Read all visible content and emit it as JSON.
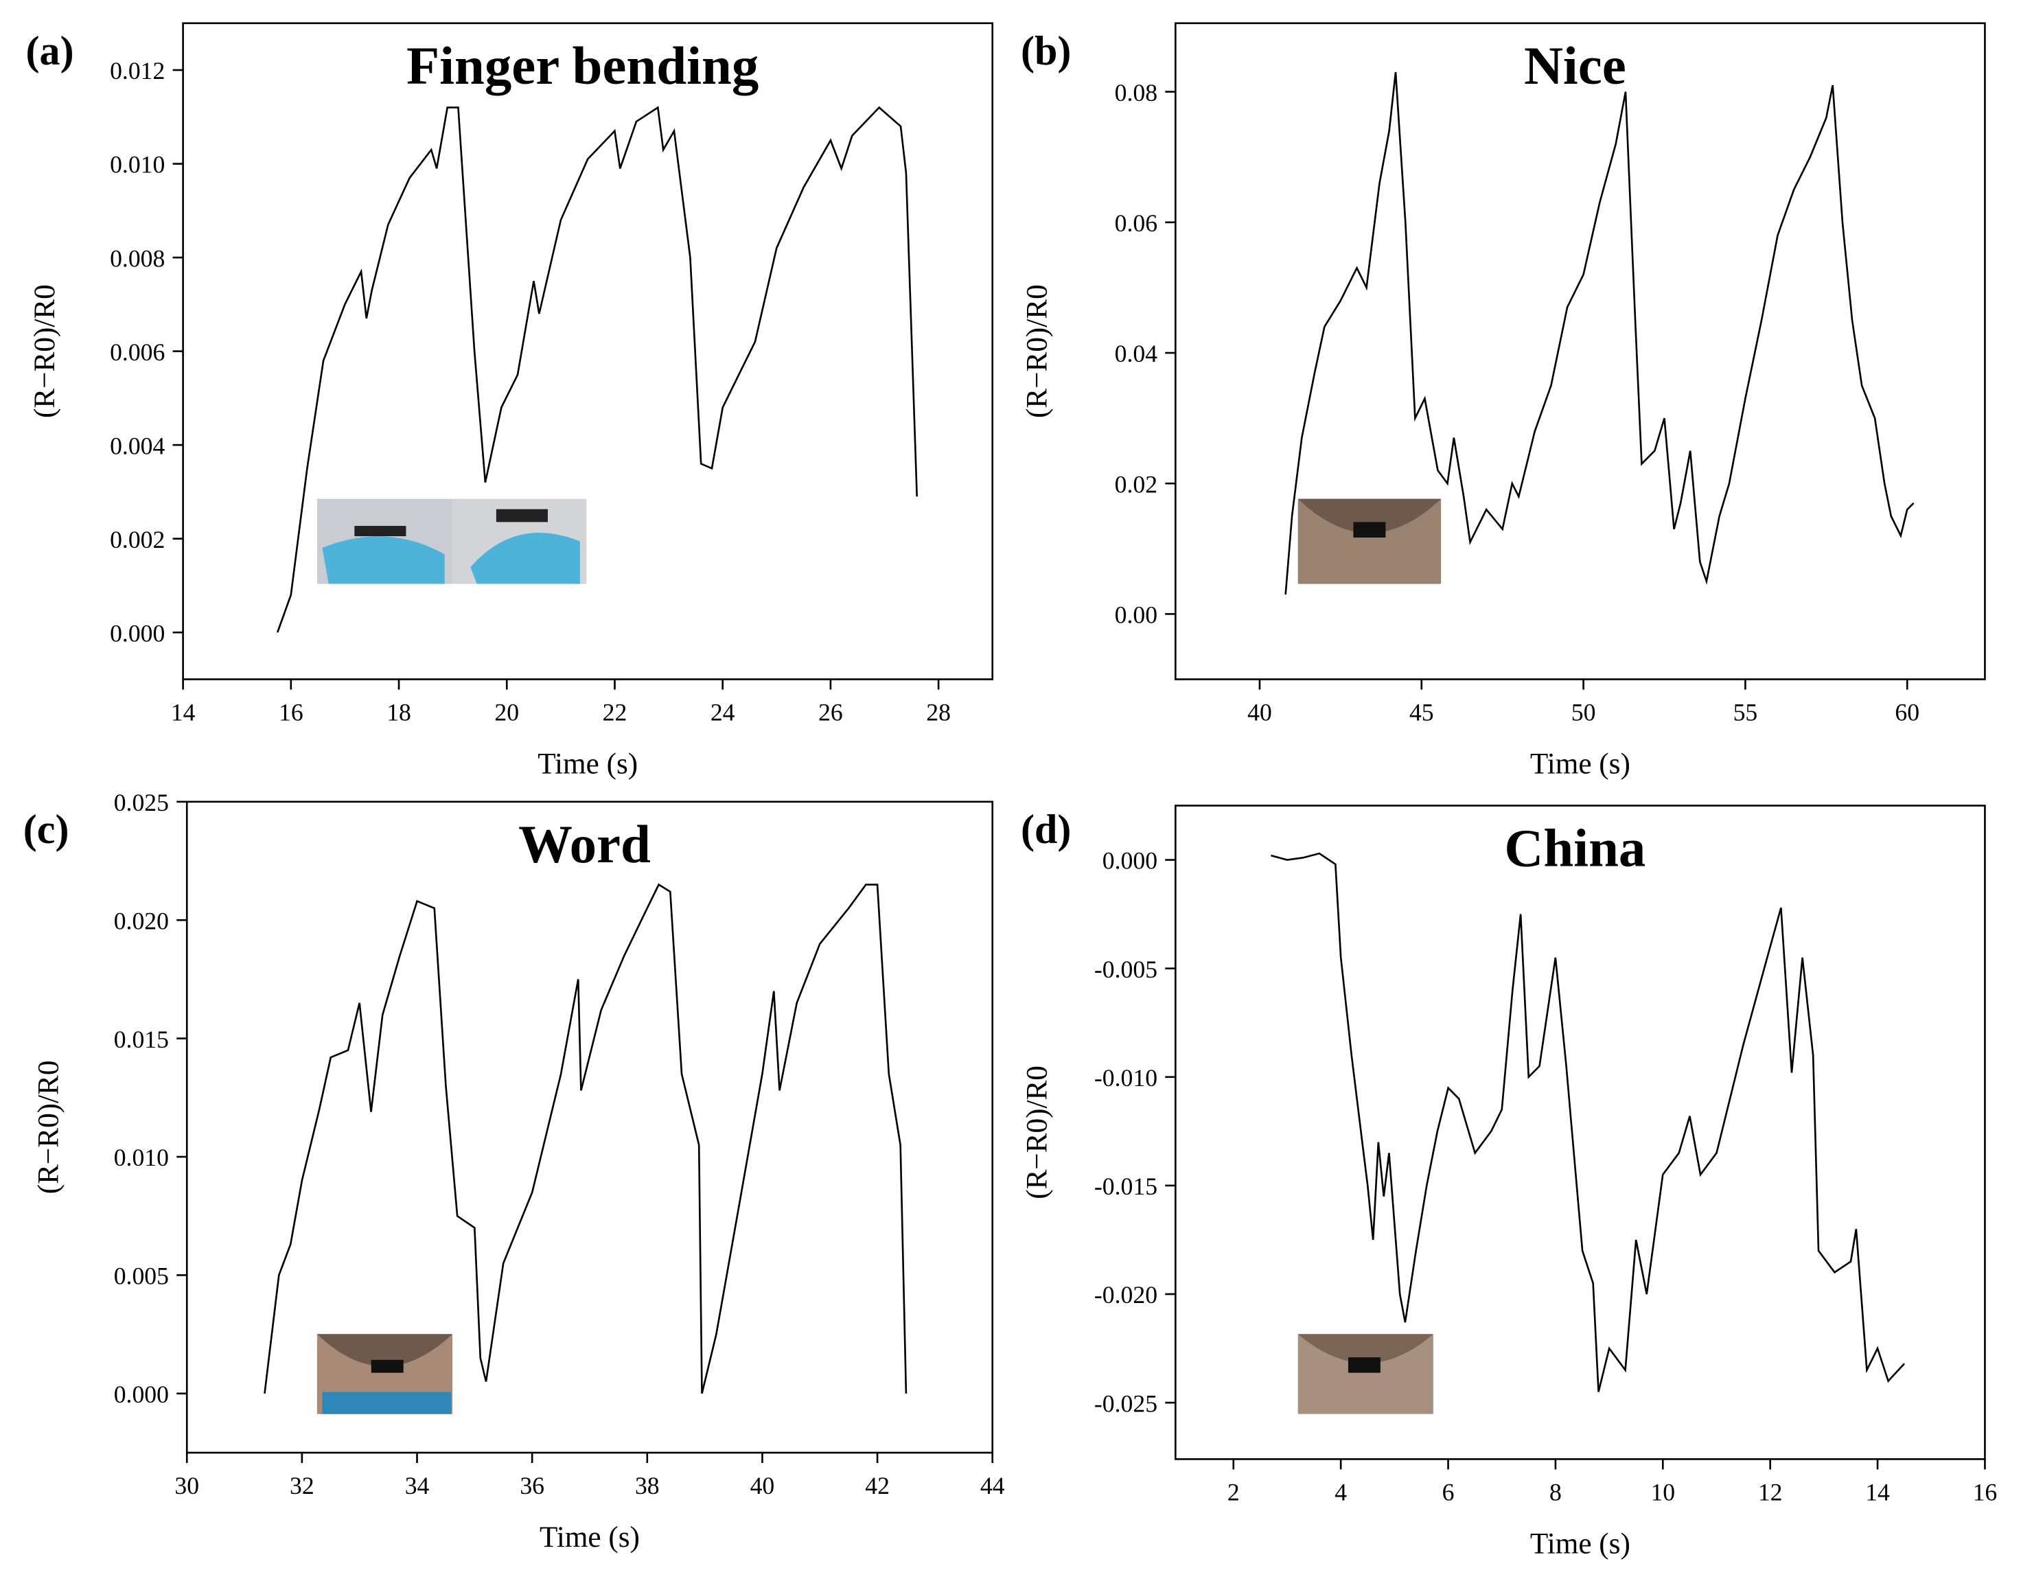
{
  "chart_data": [
    {
      "type": "line",
      "panel_label": "(a)",
      "title": "Finger bending",
      "xlabel": "Time (s)",
      "ylabel": "(R−R0)/R0",
      "color": "#000000",
      "xlim": [
        14,
        29
      ],
      "ylim": [
        -0.001,
        0.013
      ],
      "xticks": [
        14,
        16,
        18,
        20,
        22,
        24,
        26,
        28
      ],
      "yticks": [
        {
          "value": 0,
          "label": "0.000"
        },
        0.002,
        0.004,
        0.006,
        0.008,
        {
          "value": 0.01,
          "label": "0.010"
        },
        0.012
      ],
      "x": [
        15.75,
        16.0,
        16.3,
        16.6,
        17.0,
        17.3,
        17.4,
        17.5,
        17.8,
        18.2,
        18.6,
        18.7,
        18.9,
        19.1,
        19.4,
        19.6,
        19.9,
        20.2,
        20.5,
        20.6,
        21.0,
        21.5,
        22.0,
        22.1,
        22.4,
        22.8,
        22.9,
        23.1,
        23.4,
        23.6,
        23.8,
        24.0,
        24.3,
        24.6,
        25.0,
        25.5,
        26.0,
        26.2,
        26.4,
        26.9,
        27.3,
        27.4,
        27.6
      ],
      "values": [
        0,
        0.0008,
        0.0035,
        0.0058,
        0.007,
        0.0077,
        0.0067,
        0.0073,
        0.0087,
        0.0097,
        0.0103,
        0.0099,
        0.0112,
        0.0112,
        0.006,
        0.0032,
        0.0048,
        0.0055,
        0.0075,
        0.0068,
        0.0088,
        0.0101,
        0.0107,
        0.0099,
        0.0109,
        0.0112,
        0.0103,
        0.0107,
        0.008,
        0.0036,
        0.0035,
        0.0048,
        0.0055,
        0.0062,
        0.0082,
        0.0095,
        0.0105,
        0.0099,
        0.0106,
        0.0112,
        0.0108,
        0.0098,
        0.0029
      ]
    },
    {
      "type": "line",
      "panel_label": "(b)",
      "title": "Nice",
      "xlabel": "Time (s)",
      "ylabel": "(R−R0)/R0",
      "color": "#000000",
      "xlim": [
        37.4,
        62.4
      ],
      "ylim": [
        -0.01,
        0.0905
      ],
      "xticks": [
        40,
        45,
        50,
        55,
        60
      ],
      "yticks": [
        {
          "value": 0,
          "label": "0.00"
        },
        0.02,
        0.04,
        0.06,
        0.08
      ],
      "x": [
        40.8,
        41.0,
        41.3,
        41.7,
        42.0,
        42.5,
        43.0,
        43.3,
        43.7,
        44.0,
        44.2,
        44.5,
        44.8,
        45.1,
        45.5,
        45.8,
        46.0,
        46.3,
        46.5,
        47.0,
        47.5,
        47.8,
        48.0,
        48.5,
        49.0,
        49.5,
        50.0,
        50.5,
        51.0,
        51.3,
        51.6,
        51.8,
        52.2,
        52.5,
        52.8,
        53.0,
        53.3,
        53.6,
        53.8,
        54.2,
        54.5,
        55.0,
        55.5,
        56.0,
        56.5,
        57.0,
        57.5,
        57.7,
        58.0,
        58.3,
        58.6,
        59.0,
        59.3,
        59.5,
        59.8,
        60.0,
        60.2
      ],
      "values": [
        0.003,
        0.015,
        0.027,
        0.037,
        0.044,
        0.048,
        0.053,
        0.05,
        0.066,
        0.074,
        0.083,
        0.06,
        0.03,
        0.033,
        0.022,
        0.02,
        0.027,
        0.018,
        0.011,
        0.016,
        0.013,
        0.02,
        0.018,
        0.028,
        0.035,
        0.047,
        0.052,
        0.063,
        0.072,
        0.08,
        0.045,
        0.023,
        0.025,
        0.03,
        0.013,
        0.017,
        0.025,
        0.008,
        0.005,
        0.015,
        0.02,
        0.033,
        0.045,
        0.058,
        0.065,
        0.07,
        0.076,
        0.081,
        0.06,
        0.045,
        0.035,
        0.03,
        0.02,
        0.015,
        0.012,
        0.016,
        0.017
      ]
    },
    {
      "type": "line",
      "panel_label": "(c)",
      "title": "Word",
      "xlabel": "Time (s)",
      "ylabel": "(R−R0)/R0",
      "color": "#000000",
      "xlim": [
        30,
        44
      ],
      "ylim": [
        -0.0025,
        0.025
      ],
      "xticks": [
        30,
        32,
        34,
        36,
        38,
        40,
        42,
        44
      ],
      "yticks": [
        {
          "value": 0,
          "label": "0.000"
        },
        0.005,
        {
          "value": 0.01,
          "label": "0.010"
        },
        0.015,
        {
          "value": 0.02,
          "label": "0.020"
        },
        0.025
      ],
      "x": [
        31.35,
        31.6,
        31.8,
        32.0,
        32.3,
        32.5,
        32.8,
        33.0,
        33.2,
        33.4,
        33.7,
        34.0,
        34.3,
        34.5,
        34.7,
        35.0,
        35.1,
        35.2,
        35.5,
        36.0,
        36.5,
        36.8,
        36.85,
        37.2,
        37.6,
        38.0,
        38.2,
        38.4,
        38.6,
        38.9,
        38.95,
        39.2,
        39.6,
        40.0,
        40.2,
        40.3,
        40.6,
        41.0,
        41.5,
        41.8,
        42.0,
        42.2,
        42.4,
        42.5
      ],
      "values": [
        0,
        0.005,
        0.0063,
        0.009,
        0.012,
        0.0142,
        0.0145,
        0.0165,
        0.0119,
        0.016,
        0.0185,
        0.0208,
        0.0205,
        0.013,
        0.0075,
        0.007,
        0.0015,
        0.0005,
        0.0055,
        0.0085,
        0.0135,
        0.0175,
        0.0128,
        0.0162,
        0.0185,
        0.0205,
        0.0215,
        0.0212,
        0.0135,
        0.0105,
        0,
        0.0025,
        0.008,
        0.0135,
        0.017,
        0.0128,
        0.0165,
        0.019,
        0.0205,
        0.0215,
        0.0215,
        0.0135,
        0.0105,
        0
      ]
    },
    {
      "type": "line",
      "panel_label": "(d)",
      "title": "China",
      "xlabel": "Time (s)",
      "ylabel": "(R−R0)/R0",
      "color": "#000000",
      "xlim": [
        0.92,
        16
      ],
      "ylim": [
        -0.0276,
        0.0025
      ],
      "xticks": [
        2,
        4,
        6,
        8,
        10,
        12,
        14,
        16
      ],
      "yticks": [
        {
          "value": 0,
          "label": "0.000"
        },
        -0.005,
        {
          "value": -0.01,
          "label": "-0.010"
        },
        -0.015,
        {
          "value": -0.02,
          "label": "-0.020"
        },
        -0.025
      ],
      "x": [
        2.7,
        3.0,
        3.3,
        3.6,
        3.9,
        4.0,
        4.2,
        4.4,
        4.5,
        4.6,
        4.7,
        4.8,
        4.9,
        5.1,
        5.2,
        5.4,
        5.6,
        5.8,
        6.0,
        6.2,
        6.5,
        6.8,
        7.0,
        7.2,
        7.35,
        7.5,
        7.7,
        8.0,
        8.2,
        8.5,
        8.7,
        8.8,
        9.0,
        9.3,
        9.5,
        9.7,
        10.0,
        10.3,
        10.5,
        10.7,
        11.0,
        11.5,
        12.0,
        12.2,
        12.4,
        12.6,
        12.8,
        12.9,
        13.2,
        13.5,
        13.6,
        13.8,
        14.0,
        14.2,
        14.5
      ],
      "values": [
        0.0002,
        0,
        0.0001,
        0.0003,
        -0.0002,
        -0.0045,
        -0.009,
        -0.013,
        -0.015,
        -0.0175,
        -0.013,
        -0.0155,
        -0.0135,
        -0.02,
        -0.0213,
        -0.018,
        -0.015,
        -0.0125,
        -0.0105,
        -0.011,
        -0.0135,
        -0.0125,
        -0.0115,
        -0.006,
        -0.0025,
        -0.01,
        -0.0095,
        -0.0045,
        -0.0095,
        -0.018,
        -0.0195,
        -0.0245,
        -0.0225,
        -0.0235,
        -0.0175,
        -0.02,
        -0.0145,
        -0.0135,
        -0.0118,
        -0.0145,
        -0.0135,
        -0.0085,
        -0.004,
        -0.0022,
        -0.0098,
        -0.0045,
        -0.009,
        -0.018,
        -0.019,
        -0.0185,
        -0.017,
        -0.0235,
        -0.0225,
        -0.024,
        -0.0232
      ]
    }
  ]
}
